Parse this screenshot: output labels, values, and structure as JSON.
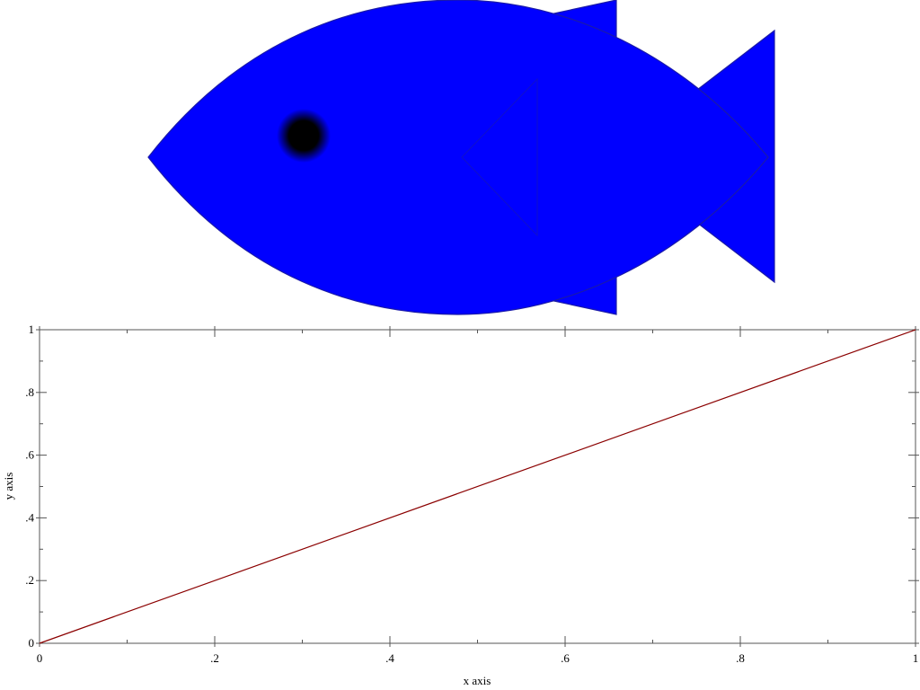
{
  "illustration": {
    "body_color": "#0000ff",
    "outline_color": "#1a1aa8",
    "eye_color": "#000000"
  },
  "chart_data": {
    "type": "line",
    "title": "",
    "xlabel": "x axis",
    "ylabel": "y axis",
    "xlim": [
      0,
      1
    ],
    "ylim": [
      0,
      1
    ],
    "x_ticks": [
      {
        "value": 0,
        "label": "0"
      },
      {
        "value": 0.2,
        "label": ".2"
      },
      {
        "value": 0.4,
        "label": ".4"
      },
      {
        "value": 0.6,
        "label": ".6"
      },
      {
        "value": 0.8,
        "label": ".8"
      },
      {
        "value": 1,
        "label": "1"
      }
    ],
    "y_ticks": [
      {
        "value": 0,
        "label": "0"
      },
      {
        "value": 0.2,
        "label": ".2"
      },
      {
        "value": 0.4,
        "label": ".4"
      },
      {
        "value": 0.6,
        "label": ".6"
      },
      {
        "value": 0.8,
        "label": ".8"
      },
      {
        "value": 1,
        "label": "1"
      }
    ],
    "grid": false,
    "series": [
      {
        "color": "#8b0000",
        "x": [
          0,
          1
        ],
        "y": [
          0,
          1
        ]
      }
    ]
  }
}
